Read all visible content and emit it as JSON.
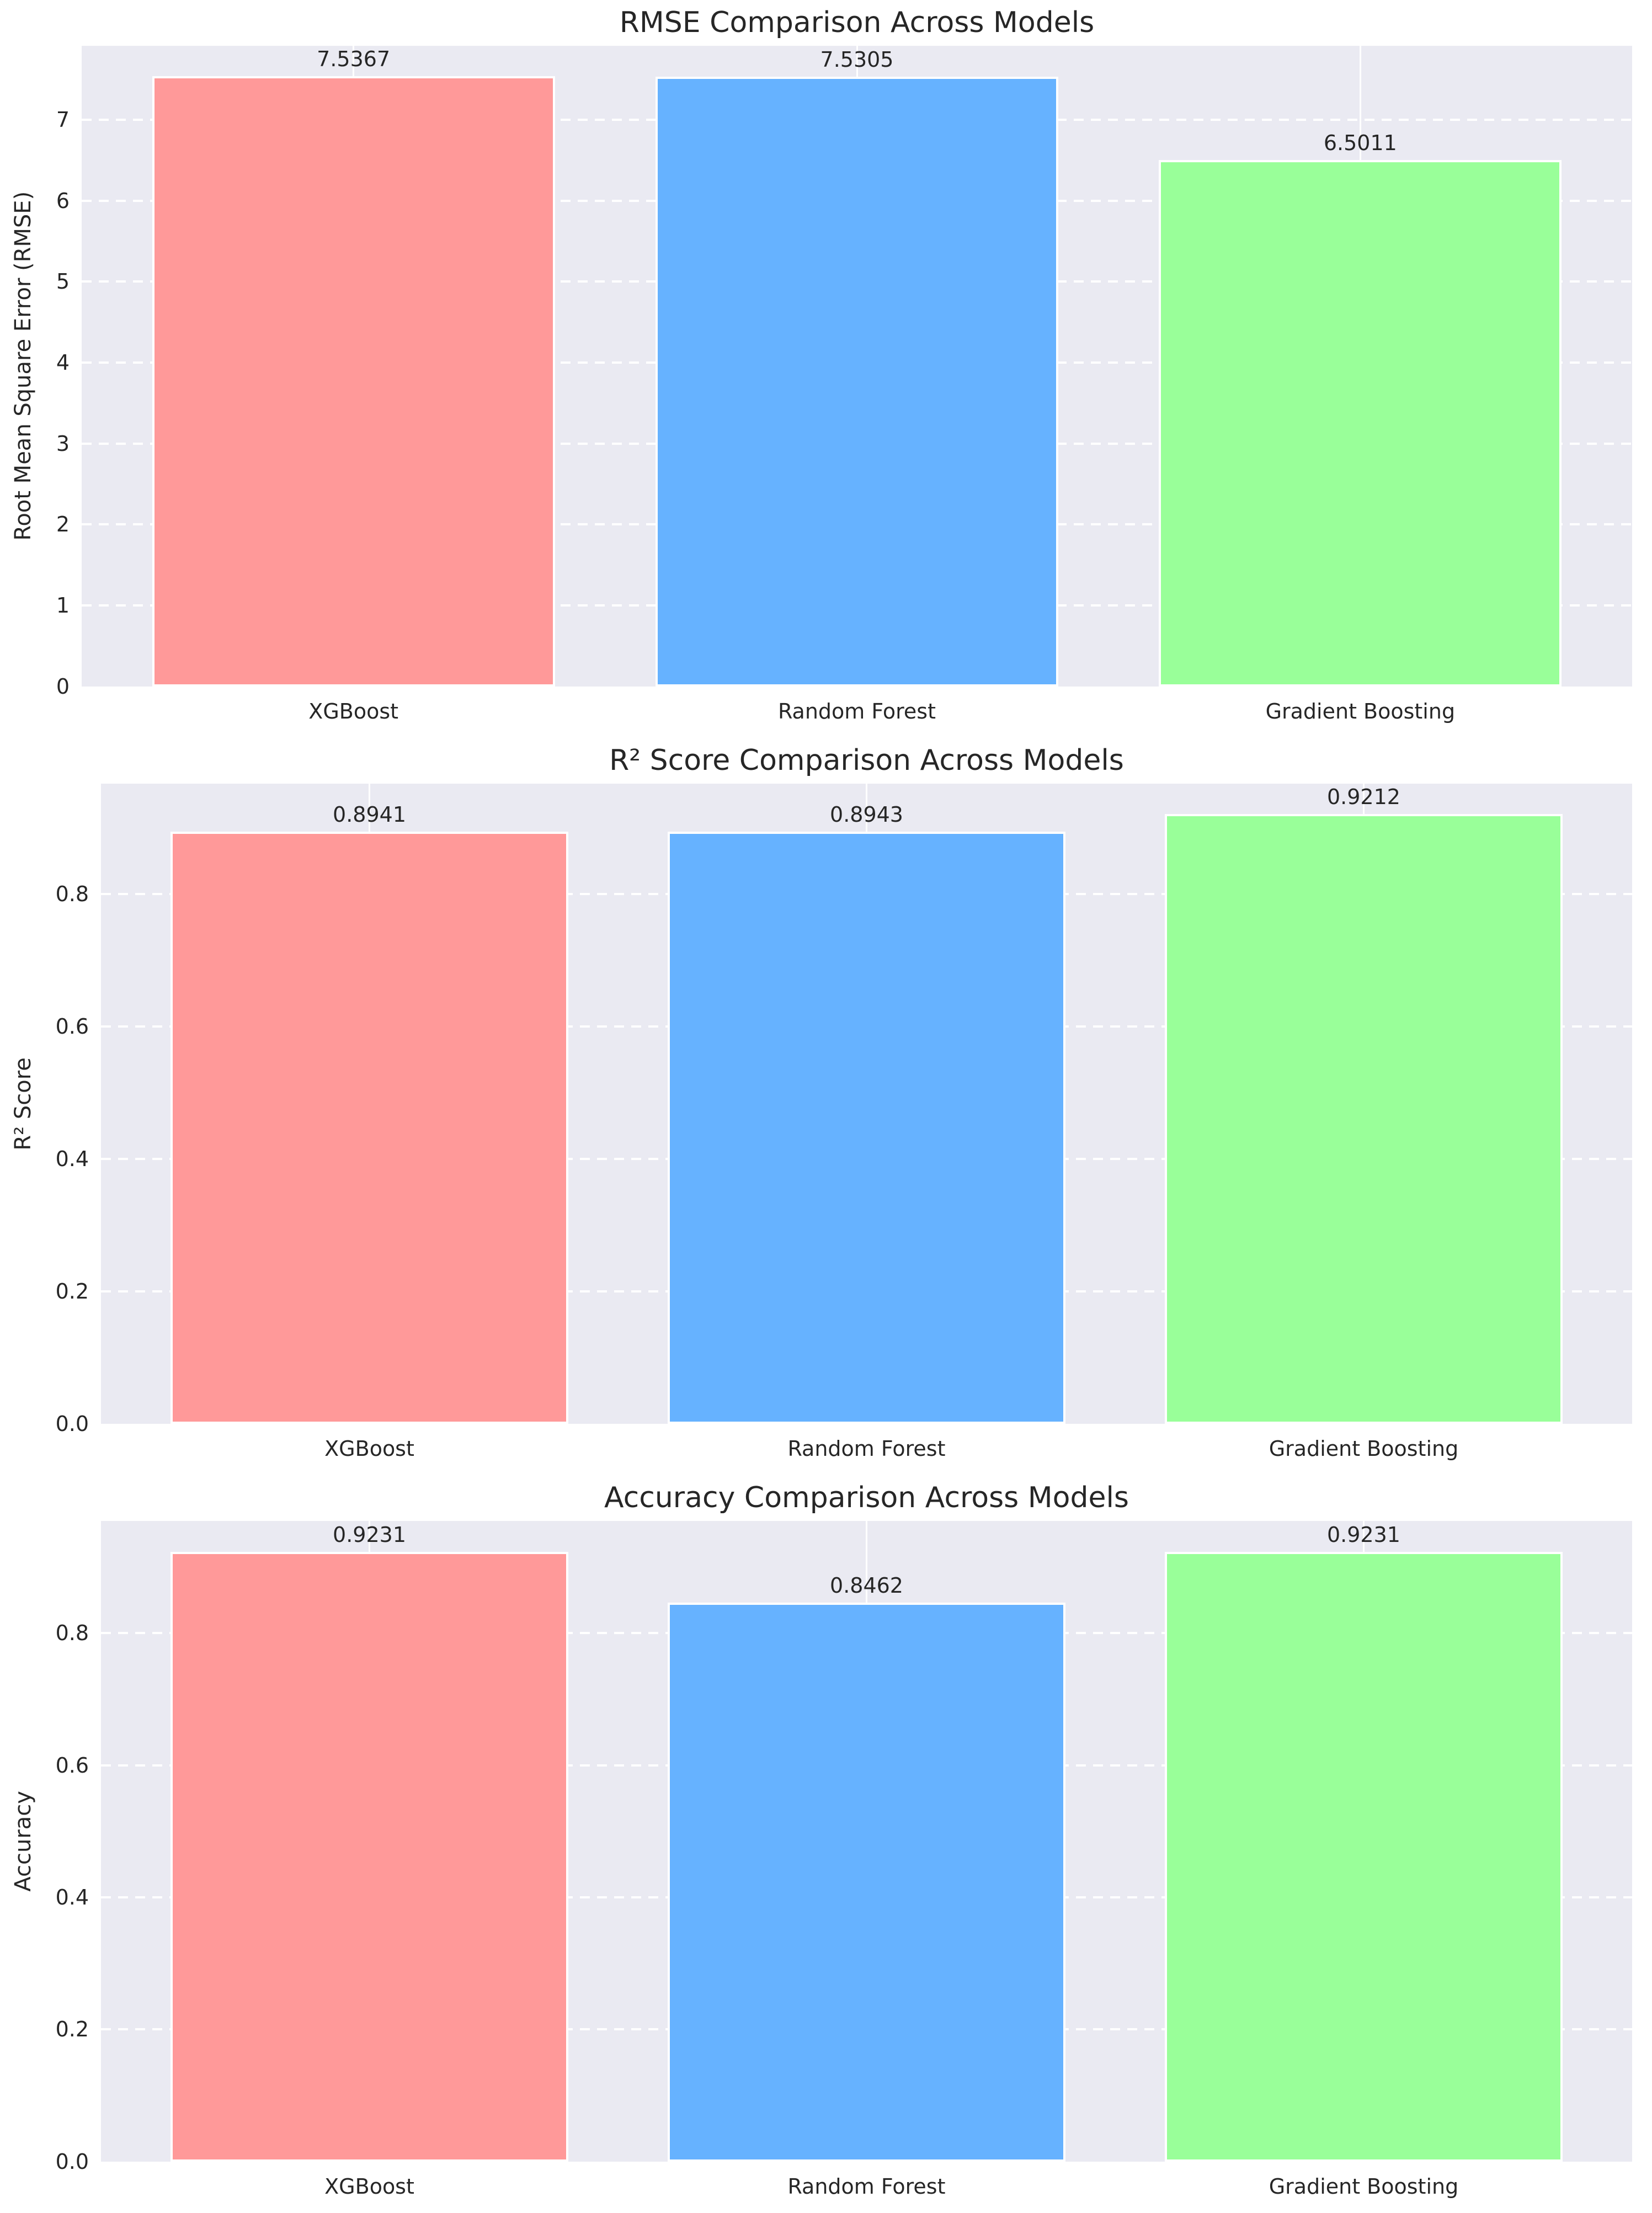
{
  "style": {
    "page_bg": "#ffffff",
    "plot_bg": "#eaeaf2",
    "grid_color": "#ffffff",
    "text_color": "#262626",
    "bar_edge_color": "#ffffff"
  },
  "chart_data": [
    {
      "type": "bar",
      "title": "RMSE Comparison Across Models",
      "ylabel": "Root Mean Square Error (RMSE)",
      "xlabel": "",
      "categories": [
        "XGBoost",
        "Random Forest",
        "Gradient Boosting"
      ],
      "values": [
        7.5367,
        7.5305,
        6.5011
      ],
      "value_labels": [
        "7.5367",
        "7.5305",
        "6.5011"
      ],
      "bar_colors": [
        "#ff9999",
        "#66b2ff",
        "#99ff99"
      ],
      "yticks": [
        0,
        1,
        2,
        3,
        4,
        5,
        6,
        7
      ],
      "ytick_labels": [
        "0",
        "1",
        "2",
        "3",
        "4",
        "5",
        "6",
        "7"
      ],
      "ylim": [
        0,
        7.9135
      ],
      "xlim": [
        -0.54,
        2.54
      ],
      "bar_width": 0.8,
      "grid": {
        "horizontal": "dashed-white",
        "vertical": "solid-white"
      },
      "legend": "none"
    },
    {
      "type": "bar",
      "title": "R² Score Comparison Across Models",
      "ylabel": "R² Score",
      "xlabel": "",
      "categories": [
        "XGBoost",
        "Random Forest",
        "Gradient Boosting"
      ],
      "values": [
        0.8941,
        0.8943,
        0.9212
      ],
      "value_labels": [
        "0.8941",
        "0.8943",
        "0.9212"
      ],
      "bar_colors": [
        "#ff9999",
        "#66b2ff",
        "#99ff99"
      ],
      "yticks": [
        0,
        0.2,
        0.4,
        0.6,
        0.8
      ],
      "ytick_labels": [
        "0.0",
        "0.2",
        "0.4",
        "0.6",
        "0.8"
      ],
      "ylim": [
        0,
        0.96726
      ],
      "xlim": [
        -0.54,
        2.54
      ],
      "bar_width": 0.8,
      "grid": {
        "horizontal": "dashed-white",
        "vertical": "solid-white"
      },
      "legend": "none"
    },
    {
      "type": "bar",
      "title": "Accuracy Comparison Across Models",
      "ylabel": "Accuracy",
      "xlabel": "",
      "categories": [
        "XGBoost",
        "Random Forest",
        "Gradient Boosting"
      ],
      "values": [
        0.9231,
        0.8462,
        0.9231
      ],
      "value_labels": [
        "0.9231",
        "0.8462",
        "0.9231"
      ],
      "bar_colors": [
        "#ff9999",
        "#66b2ff",
        "#99ff99"
      ],
      "yticks": [
        0,
        0.2,
        0.4,
        0.6,
        0.8
      ],
      "ytick_labels": [
        "0.0",
        "0.2",
        "0.4",
        "0.6",
        "0.8"
      ],
      "ylim": [
        0,
        0.96926
      ],
      "xlim": [
        -0.54,
        2.54
      ],
      "bar_width": 0.8,
      "grid": {
        "horizontal": "dashed-white",
        "vertical": "solid-white"
      },
      "legend": "none"
    }
  ]
}
